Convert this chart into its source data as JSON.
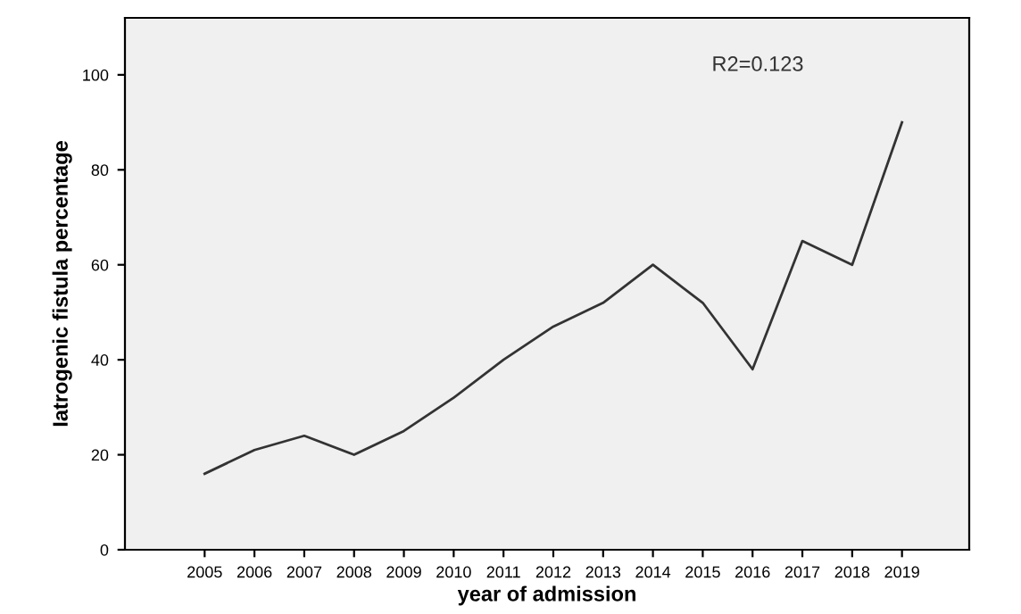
{
  "chart_data": {
    "type": "line",
    "xlabel": "year of admission",
    "ylabel": "Iatrogenic fistula percentage",
    "x": [
      2005,
      2006,
      2007,
      2008,
      2009,
      2010,
      2011,
      2012,
      2013,
      2014,
      2015,
      2016,
      2017,
      2018,
      2019
    ],
    "series": [
      {
        "color": "#333333",
        "values": [
          16,
          21,
          24,
          20,
          25,
          32,
          40,
          47,
          52,
          60,
          52,
          38,
          65,
          60,
          90
        ]
      }
    ],
    "xlim": [
      2003.4,
      2020.35
    ],
    "xticks": [
      2005,
      2006,
      2007,
      2008,
      2009,
      2010,
      2011,
      2012,
      2013,
      2014,
      2015,
      2016,
      2017,
      2018,
      2019
    ],
    "ylim": [
      0,
      112
    ],
    "yticks": [
      0,
      20,
      40,
      60,
      80,
      100
    ],
    "annotations": [
      "R2=0.123"
    ],
    "grid": false,
    "legend": false,
    "marker": "none",
    "line_style": "solid"
  }
}
